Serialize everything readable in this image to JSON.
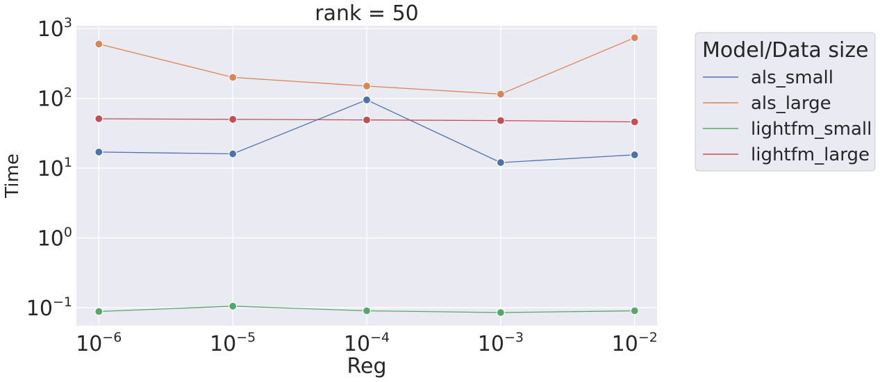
{
  "chart_data": {
    "type": "line",
    "title": "rank = 50",
    "xlabel": "Reg",
    "ylabel": "Time",
    "xscale": "log",
    "yscale": "log",
    "x": [
      1e-06,
      1e-05,
      0.0001,
      0.001,
      0.01
    ],
    "x_tick_labels": [
      {
        "base": "10",
        "exp": "−6"
      },
      {
        "base": "10",
        "exp": "−5"
      },
      {
        "base": "10",
        "exp": "−4"
      },
      {
        "base": "10",
        "exp": "−3"
      },
      {
        "base": "10",
        "exp": "−2"
      }
    ],
    "y_tick_labels": [
      {
        "value": 0.1,
        "base": "10",
        "exp": "−1"
      },
      {
        "value": 1,
        "base": "10",
        "exp": "0"
      },
      {
        "value": 10,
        "base": "10",
        "exp": "1"
      },
      {
        "value": 100,
        "base": "10",
        "exp": "2"
      },
      {
        "value": 1000,
        "base": "10",
        "exp": "3"
      }
    ],
    "xlim": [
      6.8e-07,
      0.0147
    ],
    "ylim": [
      0.055,
      1100
    ],
    "grid": true,
    "legend": {
      "title": "Model/Data size",
      "position": "outside-right"
    },
    "series": [
      {
        "name": "als_small",
        "color": "#4c72b0",
        "values": [
          17,
          16,
          95,
          12,
          15.5
        ]
      },
      {
        "name": "als_large",
        "color": "#dd8452",
        "values": [
          600,
          200,
          150,
          115,
          740
        ]
      },
      {
        "name": "lightfm_small",
        "color": "#55a868",
        "values": [
          0.088,
          0.105,
          0.09,
          0.085,
          0.09
        ]
      },
      {
        "name": "lightfm_large",
        "color": "#c44e52",
        "values": [
          51,
          50,
          49,
          48,
          46
        ]
      }
    ]
  }
}
